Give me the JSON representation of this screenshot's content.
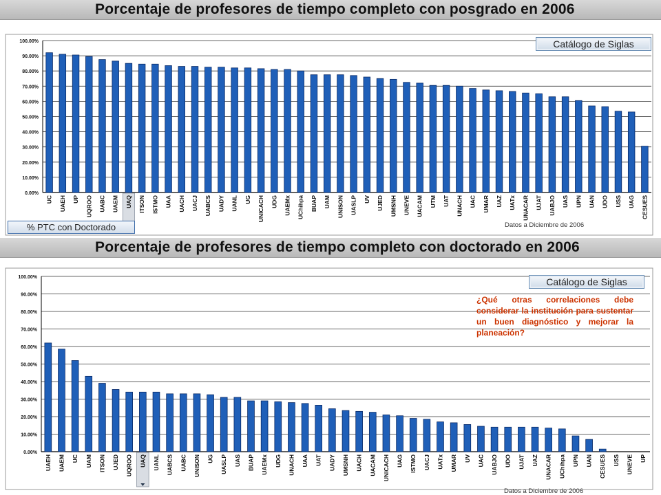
{
  "titles": {
    "top": "Porcentaje de profesores de tiempo completo con posgrado en 2006",
    "bottom": "Porcentaje de profesores de tiempo completo con doctorado en 2006"
  },
  "buttons": {
    "catalog_top": "Catálogo de Siglas",
    "catalog_bottom": "Catálogo de Siglas",
    "doctorado_link": "% PTC con Doctorado"
  },
  "note": "¿Qué otras correlaciones debe considerar la institución para sustentar un buen diagnóstico y mejorar la planeación?",
  "dates": {
    "top": "Datos a Diciembre de 2006",
    "bottom": "Datos a Diciembre de 2006"
  },
  "colors": {
    "bar": "#1f5fb8",
    "bar_edge": "#0a2a66",
    "highlight_bg": "#d9dde3",
    "note": "#cc3300"
  },
  "chart_data": [
    {
      "type": "bar",
      "title": "Porcentaje de profesores de tiempo completo con posgrado en 2006",
      "categories": [
        "UC",
        "UAEH",
        "UP",
        "UQROO",
        "UABC",
        "UAEM",
        "UAQ",
        "ITSON",
        "ISTMO",
        "UAA",
        "UACH",
        "UACJ",
        "UABCS",
        "UADY",
        "UANL",
        "UG",
        "UNICACH",
        "UDG",
        "UAEMx",
        "UChihpa",
        "BUAP",
        "UAM",
        "UNISON",
        "UASLP",
        "UV",
        "UJED",
        "UMSNH",
        "UNEVE",
        "UACAM",
        "UTM",
        "UAT",
        "UNACH",
        "UAC",
        "UMAR",
        "UAZ",
        "UATx",
        "UNACAR",
        "UJAT",
        "UABJO",
        "UAS",
        "UPN",
        "UAN",
        "UDO",
        "USS",
        "UAG",
        "CESUES"
      ],
      "values": [
        92,
        91,
        90.5,
        89.5,
        87.5,
        86.5,
        85,
        84.5,
        84.5,
        83.5,
        83,
        83,
        82.5,
        82.5,
        82,
        82,
        81.5,
        81,
        81,
        80,
        77.5,
        77.5,
        77.5,
        77,
        76,
        75,
        74.5,
        72.5,
        72,
        70.5,
        70.5,
        70,
        68.5,
        67.5,
        67,
        66.5,
        65.5,
        65,
        63,
        63,
        60.5,
        57,
        56.5,
        53.5,
        53,
        30.5
      ],
      "highlight": "UAQ",
      "ylim": [
        0,
        100
      ],
      "yticks": [
        "0.00%",
        "10.00%",
        "20.00%",
        "30.00%",
        "40.00%",
        "50.00%",
        "60.00%",
        "70.00%",
        "80.00%",
        "90.00%",
        "100.00%"
      ],
      "grid": true
    },
    {
      "type": "bar",
      "title": "Porcentaje de profesores de tiempo completo con doctorado en 2006",
      "categories": [
        "UAEH",
        "UAEM",
        "UC",
        "UAM",
        "ITSON",
        "UJED",
        "UQROO",
        "UAQ",
        "UANL",
        "UABCS",
        "UABC",
        "UNISON",
        "UG",
        "UASLP",
        "UAS",
        "BUAP",
        "UAEMx",
        "UDG",
        "UNACH",
        "UAA",
        "UAT",
        "UADY",
        "UMSNH",
        "UACH",
        "UACAM",
        "UNICACH",
        "UAG",
        "ISTMO",
        "UACJ",
        "UATx",
        "UMAR",
        "UV",
        "UAC",
        "UABJO",
        "UDO",
        "UJAT",
        "UAZ",
        "UNACAR",
        "UChihpa",
        "UPN",
        "UAN",
        "CESUES",
        "USS",
        "UNEVE",
        "UP"
      ],
      "values": [
        62,
        58.5,
        52,
        43,
        39,
        35.5,
        34,
        34,
        34,
        33,
        33,
        33,
        32.5,
        31,
        31,
        29,
        29,
        28.5,
        28,
        27.5,
        26.5,
        24.5,
        23.5,
        23,
        22.5,
        21,
        20.5,
        19,
        18.5,
        17,
        16.5,
        15.5,
        14.5,
        14,
        14,
        14,
        14,
        13.5,
        13,
        9,
        7,
        1.5,
        0,
        0,
        0
      ],
      "highlight": "UAQ",
      "ylim": [
        0,
        100
      ],
      "yticks": [
        "0.00%",
        "10.00%",
        "20.00%",
        "30.00%",
        "40.00%",
        "50.00%",
        "60.00%",
        "70.00%",
        "80.00%",
        "90.00%",
        "100.00%"
      ],
      "grid": true
    }
  ]
}
